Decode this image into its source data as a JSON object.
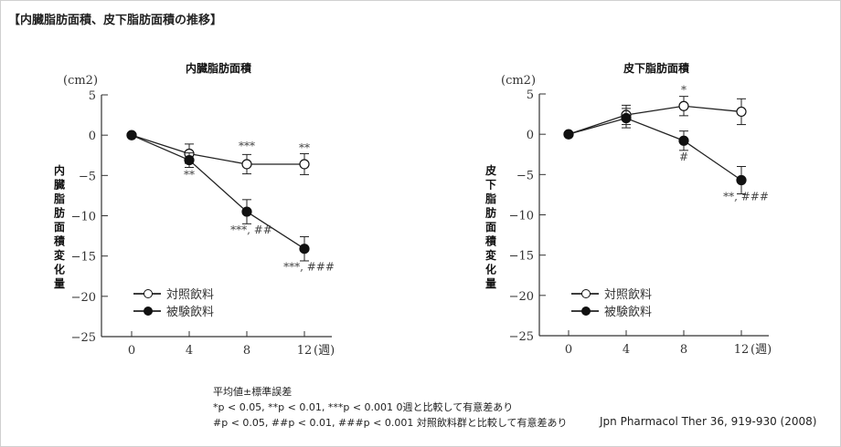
{
  "page_title": "【内臓脂肪面積、皮下脂肪面積の推移】",
  "legend": {
    "control": "対照飲料",
    "test": "被験飲料"
  },
  "notes": {
    "line1": "平均値±標準誤差",
    "line2": "*p < 0.05, **p < 0.01, ***p < 0.001  0週と比較して有意差あり",
    "line3": "#p < 0.05, ##p < 0.01, ###p < 0.001  対照飲料群と比較して有意差あり"
  },
  "citation": "Jpn Pharmacol Ther 36, 919-930 (2008)",
  "chart_data": [
    {
      "type": "line",
      "title": "内臓脂肪面積",
      "ylabel": "内臓脂肪面積変化量",
      "yunit": "(cm2)",
      "xunit": "(週)",
      "x": [
        0,
        4,
        8,
        12
      ],
      "xticks": [
        "0",
        "4",
        "8",
        "12"
      ],
      "yticks": [
        "5",
        "0",
        "−5",
        "−10",
        "−15",
        "−20",
        "−25"
      ],
      "ylim": [
        -25,
        5
      ],
      "series": [
        {
          "name": "対照飲料",
          "marker": "open",
          "values": [
            0,
            -2.3,
            -3.6,
            -3.6
          ],
          "err": [
            0,
            1.2,
            1.2,
            1.3
          ],
          "annotations": [
            "",
            "",
            "***",
            "**"
          ]
        },
        {
          "name": "被験飲料",
          "marker": "filled",
          "values": [
            0,
            -3.1,
            -9.5,
            -14.1
          ],
          "err": [
            0,
            0.9,
            1.5,
            1.5
          ],
          "annotations": [
            "",
            "**",
            "***, ##",
            "***, ###"
          ]
        }
      ]
    },
    {
      "type": "line",
      "title": "皮下脂肪面積",
      "ylabel": "皮下脂肪面積変化量",
      "yunit": "(cm2)",
      "xunit": "(週)",
      "x": [
        0,
        4,
        8,
        12
      ],
      "xticks": [
        "0",
        "4",
        "8",
        "12"
      ],
      "yticks": [
        "5",
        "0",
        "−5",
        "−10",
        "−15",
        "−20",
        "−25"
      ],
      "ylim": [
        -25,
        5
      ],
      "series": [
        {
          "name": "対照飲料",
          "marker": "open",
          "values": [
            0,
            2.4,
            3.5,
            2.8
          ],
          "err": [
            0,
            1.2,
            1.2,
            1.6
          ],
          "annotations": [
            "",
            "",
            "*",
            ""
          ]
        },
        {
          "name": "被験飲料",
          "marker": "filled",
          "values": [
            0,
            2.0,
            -0.8,
            -5.7
          ],
          "err": [
            0,
            1.2,
            1.2,
            1.7
          ],
          "annotations": [
            "",
            "",
            "#",
            "**, ###"
          ]
        }
      ]
    }
  ]
}
